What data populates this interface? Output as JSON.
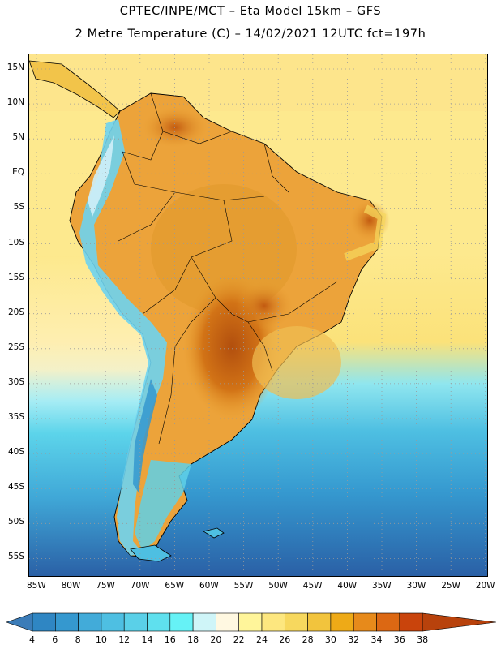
{
  "header": {
    "line1": "CPTEC/INPE/MCT –  Eta Model 15km – GFS",
    "line2": "2 Metre Temperature (C) – 14/02/2021 12UTC fct=197h"
  },
  "map": {
    "lat_labels": [
      "15N",
      "10N",
      "5N",
      "EQ",
      "5S",
      "10S",
      "15S",
      "20S",
      "25S",
      "30S",
      "35S",
      "40S",
      "45S",
      "50S",
      "55S"
    ],
    "lon_labels": [
      "85W",
      "80W",
      "75W",
      "70W",
      "65W",
      "60W",
      "55W",
      "50W",
      "45W",
      "40W",
      "35W",
      "30W",
      "25W",
      "20W"
    ]
  },
  "colorbar": {
    "labels": [
      "4",
      "6",
      "8",
      "10",
      "12",
      "14",
      "16",
      "18",
      "20",
      "22",
      "24",
      "26",
      "28",
      "30",
      "32",
      "34",
      "36",
      "38"
    ],
    "colors": [
      "#3b7cb8",
      "#2f86c3",
      "#3598cf",
      "#42abd9",
      "#4ebfe2",
      "#5ad0e8",
      "#5fe0ee",
      "#66f2f6",
      "#cff5f8",
      "#fff8e1",
      "#fff59a",
      "#fde77f",
      "#f7d85e",
      "#f2c43d",
      "#eeaa17",
      "#e78a1b",
      "#dc6813",
      "#c9440c",
      "#b8420c"
    ],
    "colors_note": "first and last are end arrows"
  },
  "palette": {
    "ocean_cold": "#2a5fa5",
    "ocean_mid": "#4ec2e0",
    "ocean_warm": "#f6e27a",
    "land_hot": "#b9560f",
    "land_warm": "#e8a33a",
    "andes": "#6ed3ef"
  }
}
